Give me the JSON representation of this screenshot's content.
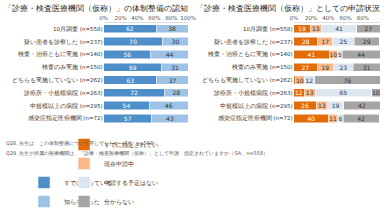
{
  "chart_data": [
    {
      "type": "bar",
      "title": "「診療・検査医療機関（仮称）」の体制整備の認知",
      "orientation": "horizontal",
      "stacked": true,
      "data_labels": true,
      "grid": false,
      "legend": "bottom",
      "categories": [
        "10月調査 (n=558)",
        "疑い患者を診察した (n=237)",
        "検査・治療ともに実施 (n=140)",
        "検査のみ実施 (n=150)",
        "どちらも実施していない (n=262)",
        "診療所・小規模病院 (n=263)",
        "中規模以上の病院 (n=295)",
        "感染症指定医療機関 (n=72)"
      ],
      "series": [
        {
          "name": "すでに知っている",
          "color": "#4e8fca",
          "values": [
            62,
            70,
            56,
            69,
            63,
            72,
            54,
            57
          ]
        },
        {
          "name": "知らなかった",
          "color": "#9cc3e5",
          "values": [
            38,
            30,
            44,
            31,
            37,
            28,
            46,
            43
          ]
        }
      ],
      "xlim": [
        0,
        100
      ],
      "xticks": [
        {
          "value": 0,
          "label": "0%"
        },
        {
          "value": 20,
          "label": "20%"
        },
        {
          "value": 40,
          "label": "40%"
        },
        {
          "value": 60,
          "label": "60%"
        },
        {
          "value": 80,
          "label": "80%"
        },
        {
          "value": 100,
          "label": "100%"
        }
      ],
      "annotations": [
        "Q28. 先生は、この体制整備について存じでしたか（SA、n=558）"
      ]
    },
    {
      "type": "bar",
      "title": "「診療・検査医療機関（仮称）」としての申請状況",
      "orientation": "horizontal",
      "stacked": true,
      "data_labels": true,
      "grid": false,
      "legend": "bottom",
      "categories": [
        "10月調査 (n=558)",
        "疑い患者を診察した (n=237)",
        "検査・治療ともに実施 (n=140)",
        "検査のみ実施 (n=150)",
        "どちらも実施していない (n=262)",
        "診療所・小規模病院 (n=263)",
        "中規模以上の病院 (n=295)",
        "感染症指定医療機関 (n=72)"
      ],
      "series": [
        {
          "name": "すでに指定されている",
          "color": "#e36c09",
          "values": [
            19,
            28,
            41,
            27,
            2,
            12,
            26,
            40
          ],
          "value_labels": [
            "19",
            "28",
            "41",
            "27",
            null,
            "12",
            "26",
            "40"
          ]
        },
        {
          "name": "現在申請中",
          "color": "#f8b98a",
          "values": [
            13,
            17,
            10,
            19,
            10,
            13,
            13,
            11
          ]
        },
        {
          "name": "申請する予定はない",
          "color": "#dce6f0",
          "values": [
            41,
            25,
            5,
            23,
            12,
            65,
            19,
            6
          ]
        },
        {
          "name": "分からない",
          "color": "#a5a5a5",
          "values": [
            27,
            29,
            44,
            31,
            76,
            10,
            42,
            42
          ]
        }
      ],
      "xlim": [
        0,
        100
      ],
      "xticks": [
        {
          "value": 0,
          "label": "0%"
        },
        {
          "value": 20,
          "label": "20%"
        },
        {
          "value": 40,
          "label": "40%"
        },
        {
          "value": 60,
          "label": "60%"
        },
        {
          "value": 80,
          "label": "80%"
        },
        {
          "value": 100,
          "label": "100%"
        }
      ],
      "annotations": [
        "Q29. 先生が所属の医療機関は、「診療・検査医療機関（仮称）」として申請、指定されていますか（SA、n=558）"
      ]
    }
  ]
}
